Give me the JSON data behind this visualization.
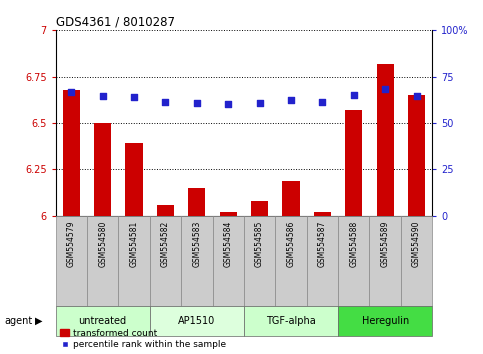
{
  "title": "GDS4361 / 8010287",
  "samples": [
    "GSM554579",
    "GSM554580",
    "GSM554581",
    "GSM554582",
    "GSM554583",
    "GSM554584",
    "GSM554585",
    "GSM554586",
    "GSM554587",
    "GSM554588",
    "GSM554589",
    "GSM554590"
  ],
  "bar_values": [
    6.68,
    6.5,
    6.39,
    6.06,
    6.15,
    6.02,
    6.08,
    6.19,
    6.02,
    6.57,
    6.82,
    6.65
  ],
  "dot_values": [
    66.5,
    64.5,
    64.0,
    61.5,
    61.0,
    60.0,
    61.0,
    62.5,
    61.5,
    65.0,
    68.5,
    64.5
  ],
  "ylim_left": [
    6.0,
    7.0
  ],
  "ylim_right": [
    0,
    100
  ],
  "yticks_left": [
    6.0,
    6.25,
    6.5,
    6.75,
    7.0
  ],
  "yticks_right": [
    0,
    25,
    50,
    75,
    100
  ],
  "ytick_labels_left": [
    "6",
    "6.25",
    "6.5",
    "6.75",
    "7"
  ],
  "ytick_labels_right": [
    "0",
    "25",
    "50",
    "75",
    "100%"
  ],
  "bar_color": "#cc0000",
  "dot_color": "#2222cc",
  "agent_groups": [
    {
      "label": "untreated",
      "start": 0,
      "end": 3,
      "color": "#ccffcc"
    },
    {
      "label": "AP1510",
      "start": 3,
      "end": 6,
      "color": "#ddffdd"
    },
    {
      "label": "TGF-alpha",
      "start": 6,
      "end": 9,
      "color": "#ccffcc"
    },
    {
      "label": "Heregulin",
      "start": 9,
      "end": 12,
      "color": "#44dd44"
    }
  ],
  "agent_label": "agent",
  "legend_bar_label": "transformed count",
  "legend_dot_label": "percentile rank within the sample",
  "background_color": "#ffffff",
  "plot_bg_color": "#ffffff",
  "grid_color": "#000000",
  "tick_color_left": "#cc0000",
  "tick_color_right": "#2222cc",
  "sample_box_color": "#cccccc",
  "sample_box_edge": "#888888"
}
